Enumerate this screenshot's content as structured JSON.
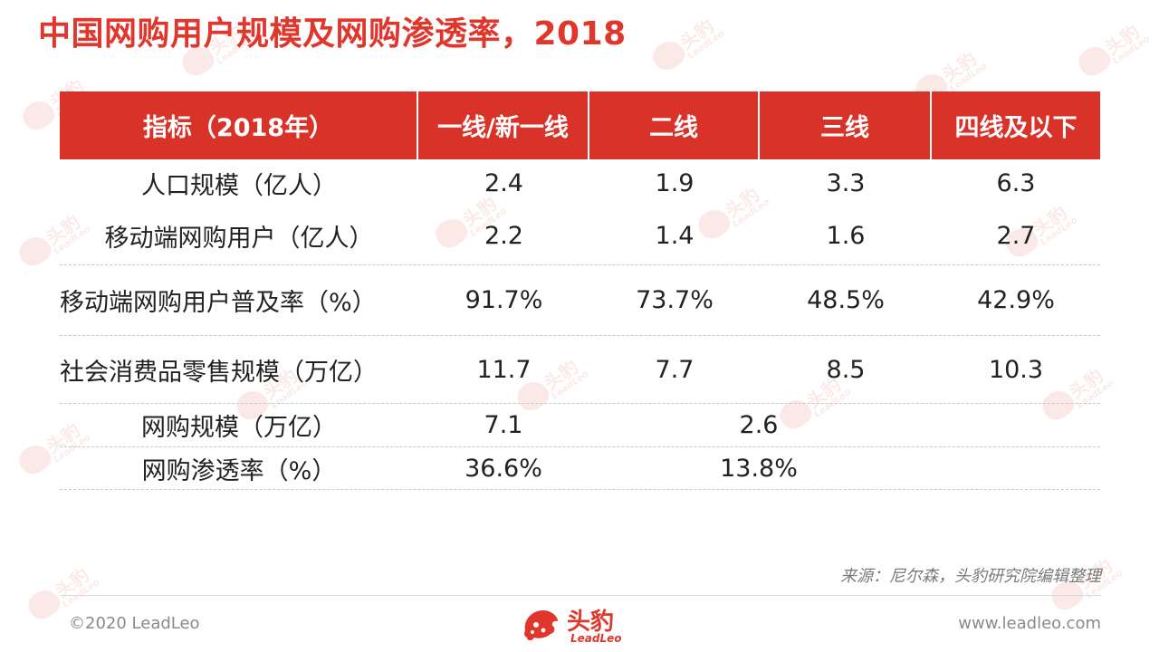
{
  "title": "中国网购用户规模及网购渗透率，2018",
  "table": {
    "headers": [
      "指标（2018年）",
      "一线/新一线",
      "二线",
      "三线",
      "四线及以下"
    ],
    "rows": [
      {
        "label": "人口规模（亿人）",
        "values": [
          "2.4",
          "1.9",
          "3.3",
          "6.3"
        ]
      },
      {
        "label": "移动端网购用户（亿人）",
        "values": [
          "2.2",
          "1.4",
          "1.6",
          "2.7"
        ]
      },
      {
        "label": "移动端网购用户普及率（%）",
        "values": [
          "91.7%",
          "73.7%",
          "48.5%",
          "42.9%"
        ]
      },
      {
        "label": "社会消费品零售规模（万亿）",
        "values": [
          "11.7",
          "7.7",
          "8.5",
          "10.3"
        ]
      }
    ],
    "merged_rows": [
      {
        "label": "网购规模（万亿）",
        "values": [
          "7.1",
          "2.6"
        ]
      },
      {
        "label": "网购渗透率（%）",
        "values": [
          "36.6%",
          "13.8%"
        ]
      }
    ]
  },
  "source": "来源：尼尔森，头豹研究院编辑整理",
  "footer": {
    "copyright": "©2020 LeadLeo",
    "website": "www.leadleo.com",
    "logo_cn": "头豹",
    "logo_en": "LeadLeo"
  },
  "colors": {
    "accent": "#e0362c",
    "header_bg": "#d93228"
  },
  "icons": {
    "logo": "leopard-head-icon",
    "watermark": "leadleo-watermark-icon"
  }
}
